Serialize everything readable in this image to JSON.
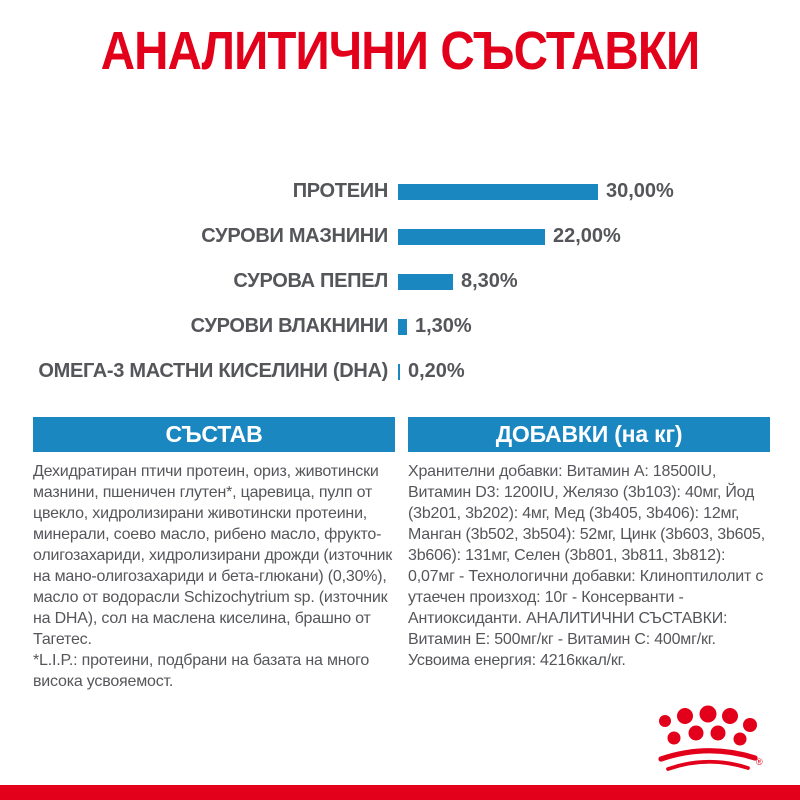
{
  "page": {
    "title": "АНАЛИТИЧНИ СЪСТАВКИ"
  },
  "chart_data": {
    "type": "bar",
    "orientation": "horizontal",
    "title": "АНАЛИТИЧНИ СЪСТАВКИ",
    "categories": [
      "ПРОТЕИН",
      "СУРОВИ МАЗНИНИ",
      "СУРОВА ПЕПЕЛ",
      "СУРОВИ ВЛАКНИНИ",
      "ОМЕГА-3 МАСТНИ КИСЕЛИНИ (DHA)"
    ],
    "values": [
      30.0,
      22.0,
      8.3,
      1.3,
      0.2
    ],
    "value_labels": [
      "30,00%",
      "22,00%",
      "8,30%",
      "1,30%",
      "0,20%"
    ],
    "unit": "%",
    "xlim": [
      0,
      30
    ],
    "grid": false,
    "legend": false,
    "bar_color": "#1b87c1"
  },
  "sections": {
    "composition": {
      "header": "СЪСТАВ",
      "body": "Дехидратиран птичи протеин, ориз, животински мазнини, пшеничен глутен*, царевица, пулп от цвекло, хидролизирани животински протеини, минерали, соево масло, рибено масло, фрукто-олигозахариди, хидролизирани дрожди (източник на мано-олигозахариди и бета-глюкани) (0,30%), масло от водорасли Schizochytrium sp. (източник на DHA), сол на маслена киселина, брашно от Тагетес.",
      "footnote": "*L.I.P.: протеини, подбрани на базата на много висока усвояемост."
    },
    "additives": {
      "header": "ДОБАВКИ (на кг)",
      "body": "Хранителни добавки: Витамин A: 18500IU, Витамин D3: 1200IU, Желязо (3b103): 40мг, Йод (3b201, 3b202): 4мг, Мед (3b405, 3b406): 12мг, Манган (3b502, 3b504): 52мг, Цинк (3b603, 3b605, 3b606): 131мг, Селен (3b801, 3b811, 3b812): 0,07мг - Технологични добавки: Клиноптилолит с утаечен произход: 10г - Консерванти - Антиоксиданти. АНАЛИТИЧНИ СЪСТАВКИ: Витамин E: 500мг/кг - Витамин C: 400мг/кг. Усвоима енергия: 4216ккал/кг."
    }
  },
  "branding": {
    "logo": "royal-canin-crown",
    "registered_mark": "®"
  },
  "colors": {
    "brand_red": "#e2001a",
    "bar_blue": "#1b87c1",
    "text_gray": "#55565a",
    "header_text": "#ffffff",
    "background": "#ffffff"
  }
}
